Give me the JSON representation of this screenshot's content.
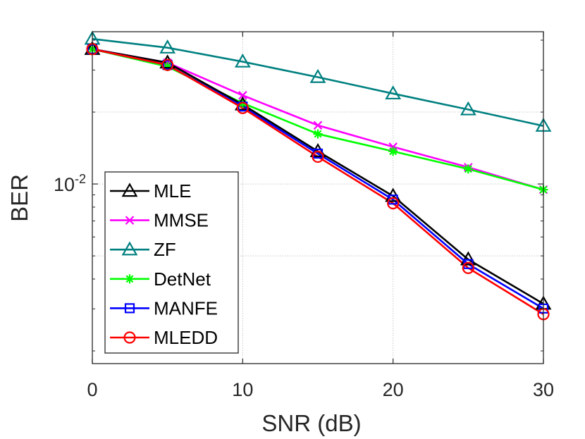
{
  "chart_data": {
    "type": "line",
    "xlabel": "SNR (dB)",
    "ylabel": "BER",
    "xlim": [
      0,
      30
    ],
    "ylim": [
      0.00177,
      0.0434
    ],
    "yscale": "log",
    "xticks": [
      0,
      10,
      20,
      30
    ],
    "xtick_labels": [
      "0",
      "10",
      "20",
      "30"
    ],
    "yticks": [
      0.01
    ],
    "ytick_labels": [
      {
        "base": "10",
        "exp": "-2"
      }
    ],
    "grid": true,
    "legend_position": "bottom-left",
    "x": [
      0,
      5,
      10,
      15,
      20,
      25,
      30
    ],
    "series": [
      {
        "name": "MLE",
        "color": "#000000",
        "marker": "triangle",
        "values": [
          0.0367,
          0.0322,
          0.0215,
          0.0137,
          0.0089,
          0.00483,
          0.00315
        ]
      },
      {
        "name": "MMSE",
        "color": "#ff00ff",
        "marker": "x",
        "values": [
          0.0367,
          0.0322,
          0.0235,
          0.0176,
          0.0143,
          0.01175,
          0.00947
        ]
      },
      {
        "name": "ZF",
        "color": "#008080",
        "marker": "triangle",
        "values": [
          0.0405,
          0.0372,
          0.0325,
          0.028,
          0.0239,
          0.0205,
          0.0175
        ]
      },
      {
        "name": "DetNet",
        "color": "#00ff00",
        "marker": "star",
        "values": [
          0.0367,
          0.031,
          0.0218,
          0.0162,
          0.0137,
          0.01155,
          0.00947
        ]
      },
      {
        "name": "MANFE",
        "color": "#0000ff",
        "marker": "square",
        "values": [
          0.0367,
          0.0315,
          0.0211,
          0.0134,
          0.0086,
          0.00462,
          0.00301
        ]
      },
      {
        "name": "MLEDD",
        "color": "#ff0000",
        "marker": "circle",
        "values": [
          0.0367,
          0.0315,
          0.0208,
          0.013,
          0.0083,
          0.00445,
          0.00285
        ]
      }
    ]
  }
}
